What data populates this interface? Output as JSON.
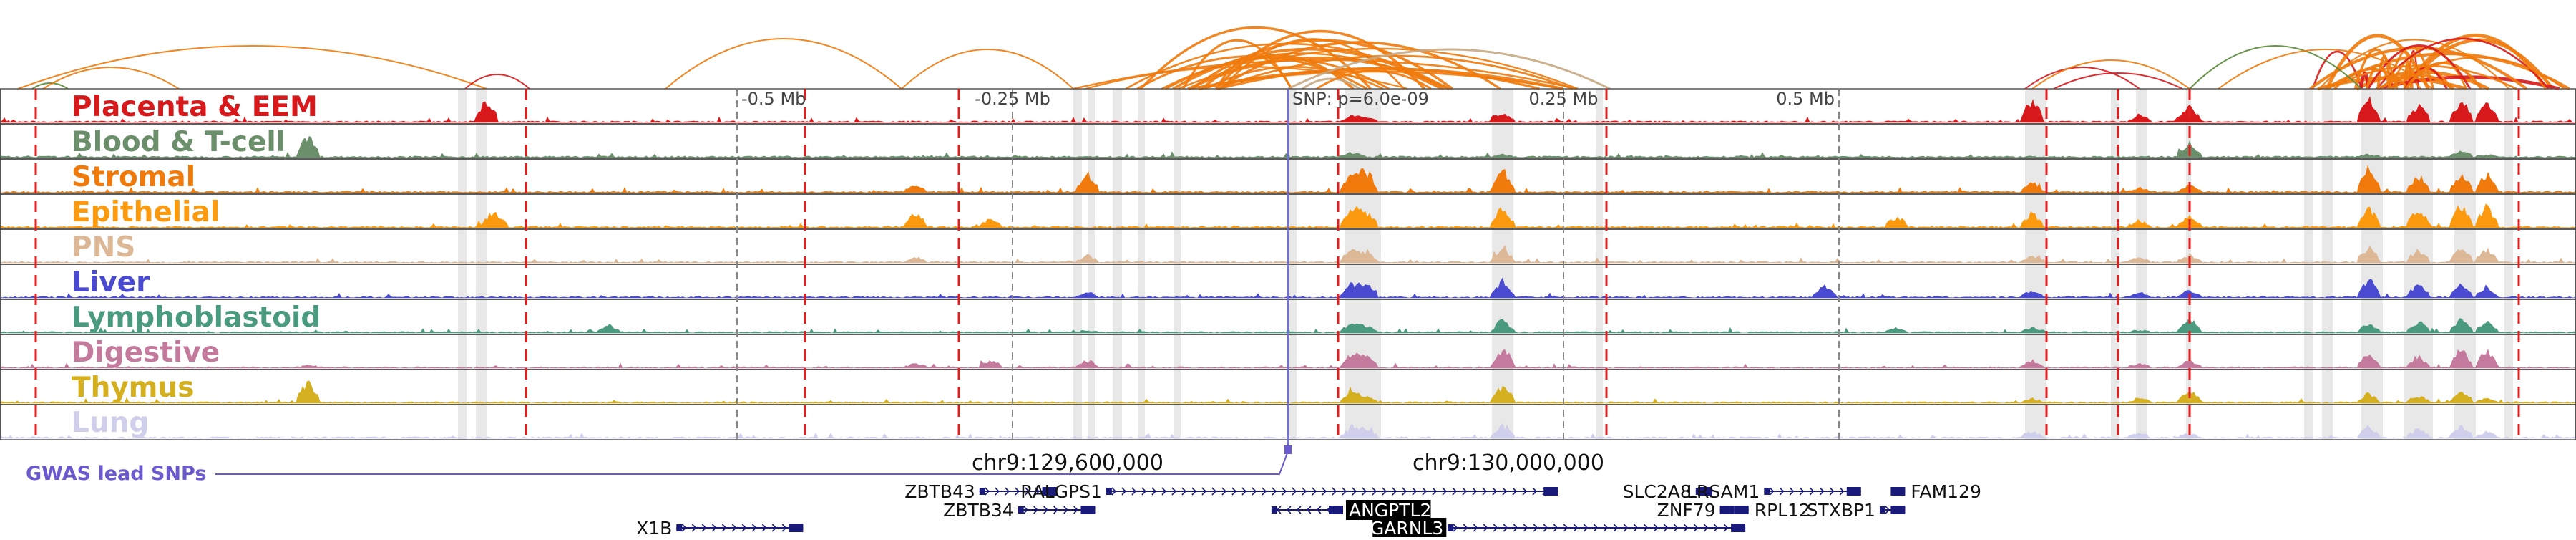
{
  "axis": {
    "ticks": [
      {
        "label": "-0.5 Mb",
        "pos": -0.5
      },
      {
        "label": "-0.25 Mb",
        "pos": -0.25
      },
      {
        "label": "0.25 Mb",
        "pos": 0.25
      },
      {
        "label": "0.5 Mb",
        "pos": 0.5
      }
    ],
    "coord_labels": [
      {
        "label": "chr9:129,600,000",
        "pos": -0.2
      },
      {
        "label": "chr9:130,000,000",
        "pos": 0.2
      }
    ]
  },
  "snp": {
    "label": "SNP: p=6.0e-09",
    "pos": 0.0
  },
  "gwas_label": "GWAS lead SNPs",
  "tracks": [
    {
      "name": "Placenta & EEM",
      "color": "#d7191c"
    },
    {
      "name": "Blood & T-cell",
      "color": "#6a8f6a"
    },
    {
      "name": "Stromal",
      "color": "#f07a0c"
    },
    {
      "name": "Epithelial",
      "color": "#fb9a0e"
    },
    {
      "name": "PNS",
      "color": "#ddb896"
    },
    {
      "name": "Liver",
      "color": "#4a4ad0"
    },
    {
      "name": "Lymphoblastoid",
      "color": "#4a9a80"
    },
    {
      "name": "Digestive",
      "color": "#c47a9c"
    },
    {
      "name": "Thymus",
      "color": "#d4b020"
    },
    {
      "name": "Lung",
      "color": "#cfcfec"
    }
  ],
  "genes": [
    {
      "name": "ZBTB43",
      "start": -0.28,
      "end": -0.21,
      "row": 0,
      "label_side": "left",
      "highlight": false,
      "strand": "+"
    },
    {
      "name": "ZBTB34",
      "start": -0.245,
      "end": -0.175,
      "row": 1,
      "label_side": "left",
      "highlight": false,
      "strand": "+"
    },
    {
      "name": "RALGPS1",
      "start": -0.165,
      "end": 0.245,
      "row": 0,
      "label_side": "left",
      "highlight": false,
      "strand": "+"
    },
    {
      "name": "ANGPTL2",
      "start": -0.015,
      "end": 0.05,
      "row": 1,
      "label_side": "right",
      "highlight": true,
      "strand": "-"
    },
    {
      "name": "GARNL3",
      "start": 0.145,
      "end": 0.415,
      "row": 2,
      "label_side": "left",
      "highlight": true,
      "strand": "+"
    },
    {
      "name": "X1B",
      "start": -0.555,
      "end": -0.44,
      "row": 2,
      "label_side": "left",
      "highlight": false,
      "strand": "+"
    },
    {
      "name": "SLC2A8",
      "start": 0.37,
      "end": 0.385,
      "row": 0,
      "label_side": "left",
      "highlight": false,
      "strand": "+"
    },
    {
      "name": "ZNF79",
      "start": 0.392,
      "end": 0.405,
      "row": 1,
      "label_side": "left",
      "highlight": false,
      "strand": "+"
    },
    {
      "name": "LRSAM1",
      "start": 0.432,
      "end": 0.52,
      "row": 0,
      "label_side": "left",
      "highlight": false,
      "strand": "+"
    },
    {
      "name": "RPL12",
      "start": 0.41,
      "end": 0.418,
      "row": 1,
      "label_side": "right",
      "highlight": false,
      "strand": "-"
    },
    {
      "name": "STXBP1",
      "start": 0.537,
      "end": 0.56,
      "row": 1,
      "label_side": "left",
      "highlight": false,
      "strand": "+"
    },
    {
      "name": "FAM129",
      "start": 0.548,
      "end": 0.56,
      "row": 0,
      "label_side": "right",
      "highlight": false,
      "strand": "+"
    }
  ],
  "colors": {
    "arc_orange": "#f07a0c",
    "arc_red": "#d7191c",
    "arc_tan": "#c8a882",
    "arc_green": "#5a8a3a",
    "dashed_line": "#e02020",
    "gene": "#1a1a7a",
    "gwas": "#6a5acd",
    "shade": "#e0e0e0"
  },
  "icons": {
    "gene_strand_forward": "chevron-right",
    "gene_strand_reverse": "chevron-left"
  }
}
